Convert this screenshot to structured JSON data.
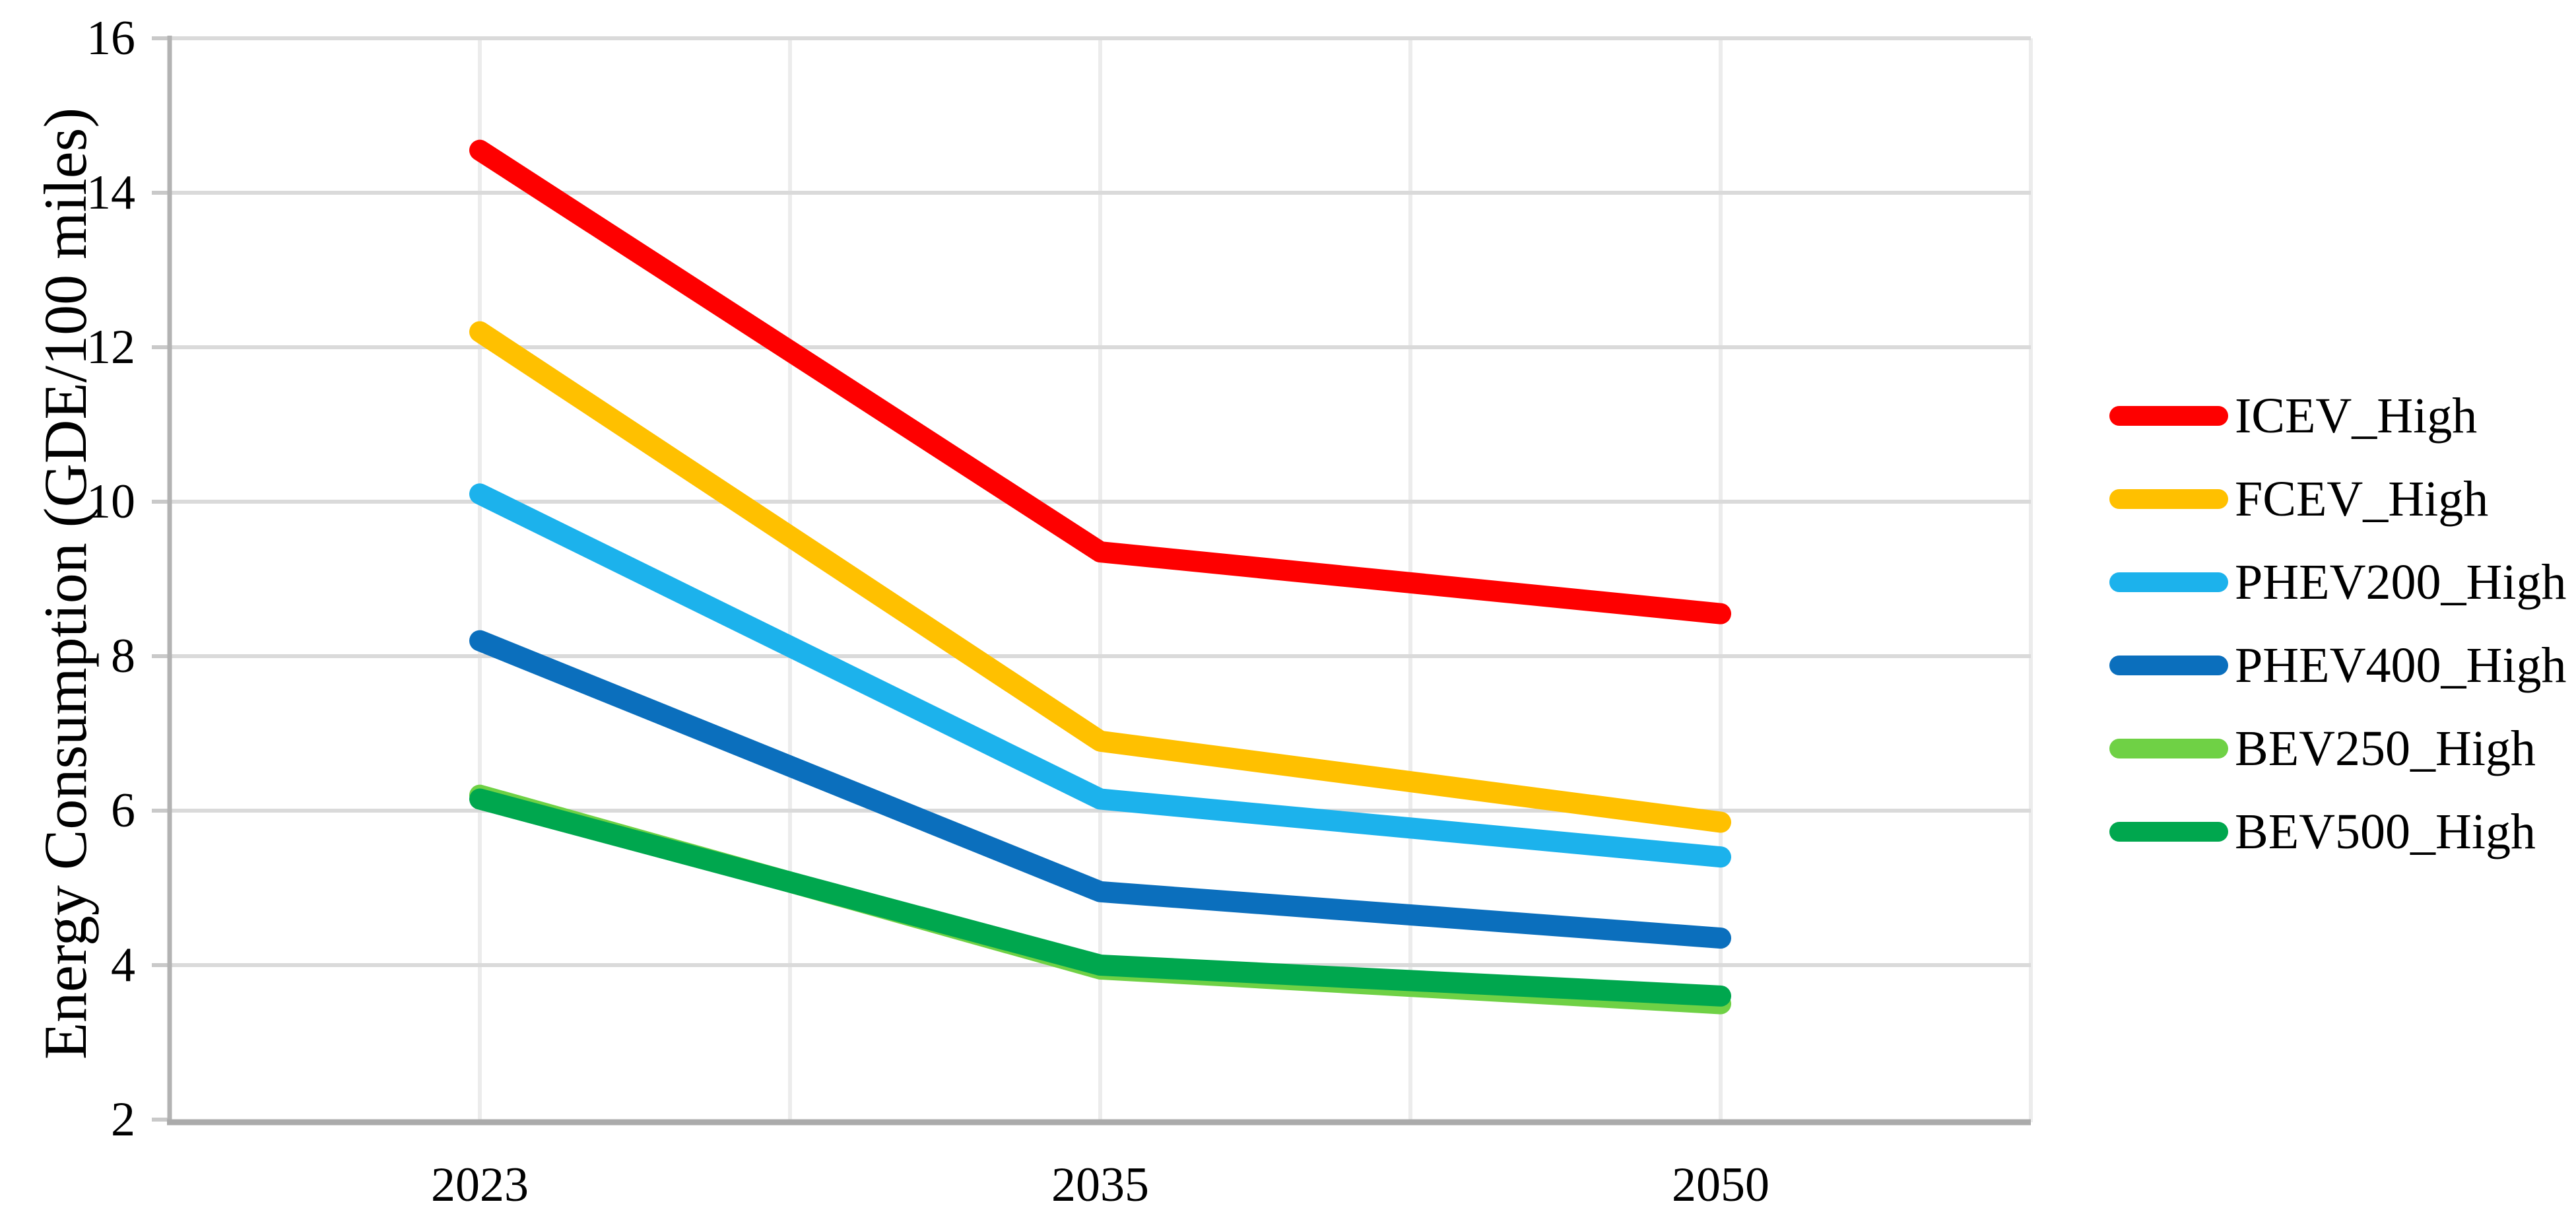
{
  "chart_data": {
    "type": "line",
    "title": "",
    "xlabel": "",
    "ylabel": "Energy Consumption (GDE/100 miles)",
    "categories": [
      "2023",
      "2035",
      "2050"
    ],
    "ylim": [
      2,
      16
    ],
    "y_ticks": [
      2,
      4,
      6,
      8,
      10,
      12,
      14,
      16
    ],
    "grid": "major horizontal and vertical gridlines on, light gray",
    "legend_position": "right",
    "series": [
      {
        "name": "ICEV_High",
        "color": "#FE0000",
        "values": [
          14.55,
          9.35,
          8.55
        ]
      },
      {
        "name": "FCEV_High",
        "color": "#FFC000",
        "values": [
          12.2,
          6.9,
          5.85
        ]
      },
      {
        "name": "PHEV200_High",
        "color": "#1CB2EC",
        "values": [
          10.1,
          6.15,
          5.4
        ]
      },
      {
        "name": "PHEV400_High",
        "color": "#0B6FBD",
        "values": [
          8.2,
          4.95,
          4.35
        ]
      },
      {
        "name": "BEV250_High",
        "color": "#6FD145",
        "values": [
          6.2,
          3.95,
          3.5
        ]
      },
      {
        "name": "BEV500_High",
        "color": "#00A74E",
        "values": [
          6.15,
          4.0,
          3.6
        ]
      }
    ]
  }
}
